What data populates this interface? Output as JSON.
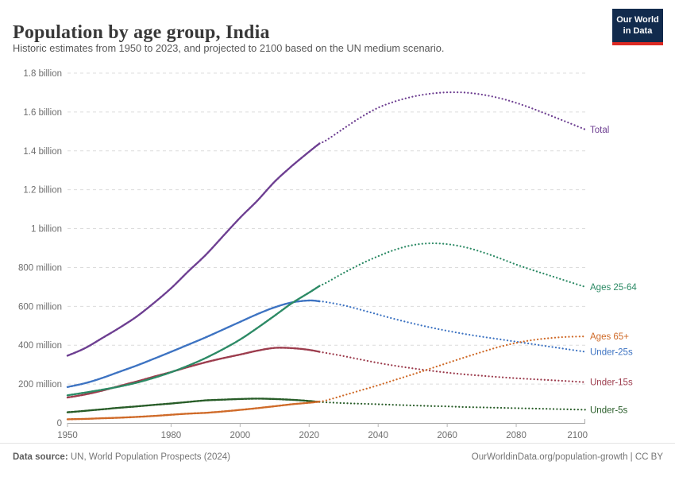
{
  "header": {
    "logo": {
      "line1": "Our World",
      "line2": "in Data",
      "bg_color": "#122b4d",
      "stripe_color": "#dc2a23"
    }
  },
  "footer": {
    "source_prefix": "Data source:",
    "source": " UN, World Population Prospects (2024)",
    "link": "OurWorldinData.org/population-growth | CC BY"
  },
  "chart_data": {
    "type": "line",
    "title": "Population by age group, India",
    "subtitle": "Historic estimates from 1950 to 2023, and projected to 2100 based on the UN medium scenario.",
    "unit": "people (millions)",
    "grid": true,
    "legend_position": "end-of-line labels, right side",
    "x_range": [
      1950,
      2100
    ],
    "y_range_millions": [
      0,
      1800
    ],
    "projection_start_year": 2023,
    "line_style": {
      "historic": "solid beaded",
      "projected": "dotted"
    },
    "x_tick_years": [
      1950,
      1980,
      2000,
      2020,
      2040,
      2060,
      2080,
      2100
    ],
    "y_ticks": [
      {
        "value_millions": 0,
        "label": "0"
      },
      {
        "value_millions": 200,
        "label": "200 million"
      },
      {
        "value_millions": 400,
        "label": "400 million"
      },
      {
        "value_millions": 600,
        "label": "600 million"
      },
      {
        "value_millions": 800,
        "label": "800 million"
      },
      {
        "value_millions": 1000,
        "label": "1 billion"
      },
      {
        "value_millions": 1200,
        "label": "1.2 billion"
      },
      {
        "value_millions": 1400,
        "label": "1.4 billion"
      },
      {
        "value_millions": 1600,
        "label": "1.6 billion"
      },
      {
        "value_millions": 1800,
        "label": "1.8 billion"
      }
    ],
    "years": [
      1950,
      1955,
      1960,
      1965,
      1970,
      1975,
      1980,
      1985,
      1990,
      1995,
      2000,
      2005,
      2010,
      2015,
      2020,
      2023,
      2025,
      2030,
      2035,
      2040,
      2045,
      2050,
      2055,
      2060,
      2065,
      2070,
      2075,
      2080,
      2085,
      2090,
      2095,
      2100
    ],
    "series": [
      {
        "name": "Total",
        "color": "#6d3e91",
        "values_millions": [
          346,
          384,
          436,
          489,
          547,
          617,
          693,
          780,
          864,
          960,
          1056,
          1144,
          1241,
          1322,
          1396,
          1438,
          1455,
          1515,
          1573,
          1622,
          1655,
          1679,
          1694,
          1701,
          1700,
          1690,
          1672,
          1647,
          1616,
          1581,
          1546,
          1510
        ]
      },
      {
        "name": "Ages 25-64",
        "color": "#2c8a65",
        "values_millions": [
          142,
          156,
          171,
          187,
          207,
          232,
          261,
          295,
          334,
          379,
          429,
          489,
          552,
          616,
          671,
          705,
          722,
          772,
          818,
          858,
          892,
          915,
          924,
          920,
          905,
          880,
          849,
          815,
          785,
          757,
          728,
          700
        ]
      },
      {
        "name": "Ages 65+",
        "color": "#cf6a28",
        "values_millions": [
          19,
          21,
          24,
          27,
          31,
          36,
          42,
          48,
          52,
          59,
          67,
          76,
          86,
          96,
          104,
          110,
          116,
          142,
          168,
          194,
          222,
          250,
          279,
          308,
          337,
          365,
          391,
          412,
          427,
          437,
          443,
          445
        ]
      },
      {
        "name": "Under-25s",
        "color": "#3d73c2",
        "values_millions": [
          185,
          204,
          231,
          263,
          295,
          330,
          366,
          403,
          440,
          480,
          520,
          560,
          595,
          620,
          630,
          626,
          622,
          605,
          582,
          558,
          534,
          512,
          492,
          474,
          458,
          444,
          431,
          418,
          405,
          392,
          379,
          366
        ]
      },
      {
        "name": "Under-15s",
        "color": "#9c3c4d",
        "values_millions": [
          131,
          146,
          166,
          190,
          213,
          238,
          262,
          288,
          312,
          333,
          352,
          372,
          386,
          385,
          376,
          366,
          360,
          344,
          326,
          309,
          294,
          281,
          269,
          259,
          250,
          243,
          236,
          230,
          225,
          220,
          215,
          210
        ]
      },
      {
        "name": "Under-5s",
        "color": "#275c27",
        "values_millions": [
          55,
          62,
          70,
          78,
          85,
          93,
          100,
          108,
          116,
          120,
          123,
          125,
          123,
          119,
          113,
          108,
          106,
          102,
          99,
          96,
          93,
          90,
          87,
          85,
          82,
          80,
          78,
          76,
          74,
          72,
          70,
          68
        ]
      }
    ],
    "draw_order": [
      "Under-25s",
      "Under-15s",
      "Under-5s",
      "Ages 25-64",
      "Ages 65+",
      "Total"
    ]
  }
}
